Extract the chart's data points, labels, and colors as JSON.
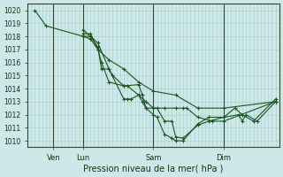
{
  "xlabel": "Pression niveau de la mer( hPa )",
  "ylim": [
    1009.5,
    1020.5
  ],
  "yticks": [
    1010,
    1011,
    1012,
    1013,
    1014,
    1015,
    1016,
    1017,
    1018,
    1019,
    1020
  ],
  "background_color": "#cce8e8",
  "grid_color": "#aacccc",
  "line_color": "#1a5520",
  "vline_color": "#334433",
  "xtick_positions": [
    7,
    15,
    34,
    53
  ],
  "xtick_labels": [
    "Ven",
    "Lun",
    "Sam",
    "Dim"
  ],
  "vlines": [
    7,
    15,
    34,
    53
  ],
  "xlim": [
    0,
    68
  ],
  "series_x": [
    [
      2,
      5,
      15,
      17,
      19,
      22,
      26,
      30,
      34,
      40,
      46,
      53,
      67
    ],
    [
      15,
      17,
      19,
      22,
      26,
      27,
      28,
      30,
      32,
      34,
      37,
      40,
      42,
      43,
      46,
      50,
      53,
      67
    ],
    [
      15,
      17,
      19,
      20,
      22,
      26,
      30,
      31,
      32,
      34,
      35,
      37,
      39,
      40,
      42,
      46,
      49,
      53,
      57,
      58,
      59,
      62,
      67
    ],
    [
      15,
      17,
      19,
      20,
      22,
      23,
      26,
      27,
      30,
      31,
      32,
      34,
      35,
      37,
      39,
      40,
      42,
      46,
      49,
      53,
      56,
      58,
      61,
      67
    ]
  ],
  "series_y": [
    [
      1020.0,
      1018.8,
      1018.0,
      1017.8,
      1017.0,
      1016.2,
      1015.5,
      1014.5,
      1013.8,
      1013.5,
      1012.5,
      1012.5,
      1013.0
    ],
    [
      1018.0,
      1018.0,
      1017.5,
      1015.5,
      1013.2,
      1013.2,
      1013.2,
      1013.5,
      1013.0,
      1012.5,
      1012.5,
      1012.5,
      1012.5,
      1012.5,
      1011.8,
      1011.5,
      1011.5,
      1013.0
    ],
    [
      1018.2,
      1018.2,
      1017.0,
      1016.0,
      1014.5,
      1014.2,
      1014.3,
      1013.5,
      1012.5,
      1012.5,
      1012.5,
      1011.5,
      1011.5,
      1010.3,
      1010.2,
      1011.2,
      1011.5,
      1011.8,
      1012.0,
      1011.5,
      1012.0,
      1011.5,
      1013.0
    ],
    [
      1018.5,
      1018.0,
      1017.2,
      1015.5,
      1015.5,
      1015.0,
      1014.2,
      1014.2,
      1013.5,
      1013.0,
      1012.5,
      1012.0,
      1011.8,
      1010.5,
      1010.2,
      1010.0,
      1010.0,
      1011.3,
      1011.8,
      1011.8,
      1012.5,
      1012.0,
      1011.5,
      1013.2
    ]
  ]
}
